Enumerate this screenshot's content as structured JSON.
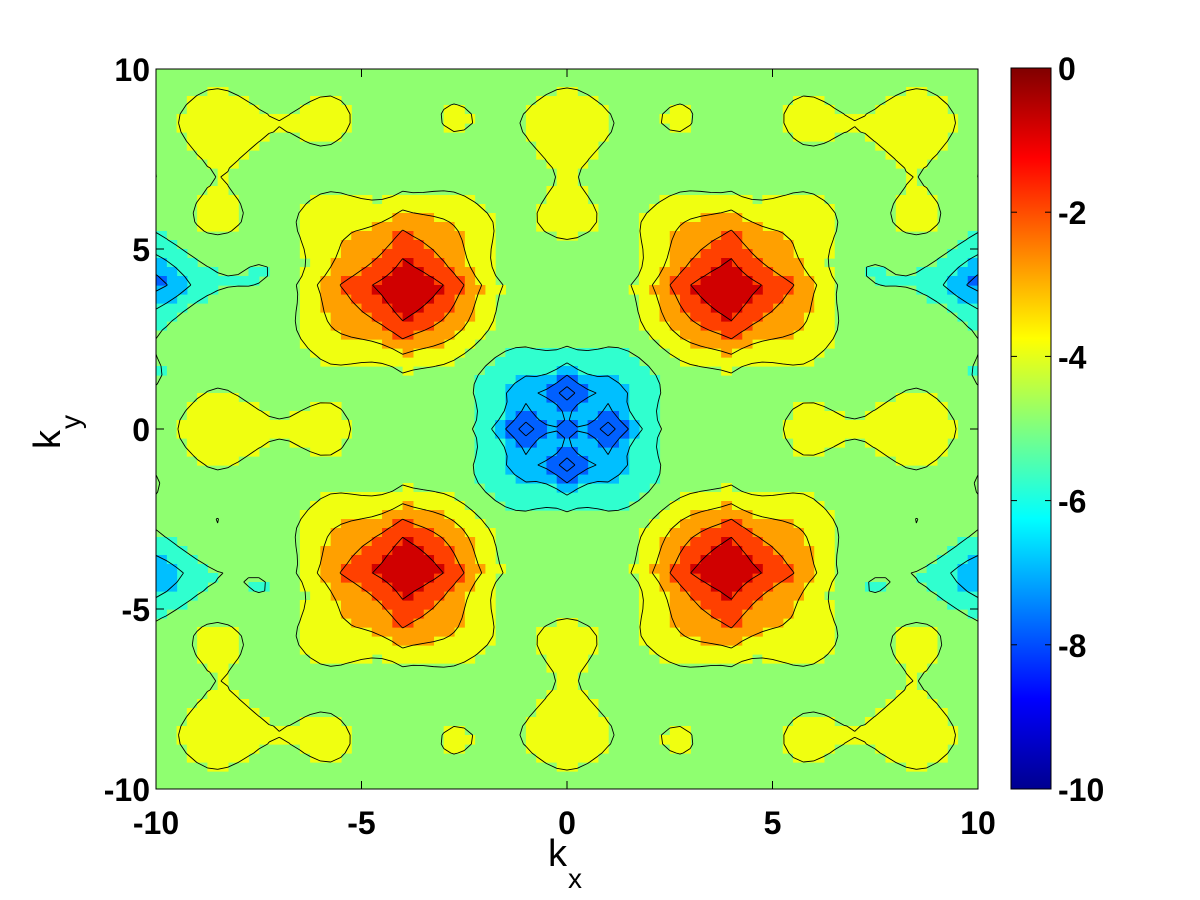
{
  "chart_data": {
    "type": "heatmap",
    "subtype": "filled-contour",
    "title": "",
    "xlabel": {
      "main": "k",
      "sub": "x"
    },
    "ylabel": {
      "main": "k",
      "sub": "y"
    },
    "xlim": [
      -10,
      10
    ],
    "ylim": [
      -10,
      10
    ],
    "x_ticks": [
      -10,
      -5,
      0,
      5,
      10
    ],
    "y_ticks": [
      -10,
      -5,
      0,
      5,
      10
    ],
    "x_tick_labels": [
      "-10",
      "-5",
      "0",
      "5",
      "10"
    ],
    "y_tick_labels": [
      "-10",
      "-5",
      "0",
      "5",
      "10"
    ],
    "colorbar": {
      "range": [
        -10,
        0
      ],
      "ticks": [
        0,
        -2,
        -4,
        -6,
        -8,
        -10
      ],
      "tick_labels": [
        "0",
        "-2",
        "-4",
        "-6",
        "-8",
        "-10"
      ],
      "colormap": "jet"
    },
    "contour_levels": [
      -10,
      -9,
      -8,
      -7,
      -6,
      -5,
      -4,
      -3,
      -2,
      -1,
      0
    ],
    "level_colors": {
      "-10": "#00008f",
      "-9": "#0000ff",
      "-8": "#0060ff",
      "-7": "#00bfff",
      "-6": "#30ffcf",
      "-5": "#8fff70",
      "-4": "#f0ff10",
      "-3": "#ffa000",
      "-2": "#ff4000",
      "-1": "#d00000",
      "0": "#800000"
    },
    "features": [
      {
        "label": "maximum",
        "x": -4,
        "y": 4,
        "value": -0.2
      },
      {
        "label": "maximum",
        "x": 4,
        "y": 4,
        "value": -0.2
      },
      {
        "label": "maximum",
        "x": -4,
        "y": -4,
        "value": -0.2
      },
      {
        "label": "maximum",
        "x": 4,
        "y": -4,
        "value": -0.2
      },
      {
        "label": "minimum",
        "x": 0,
        "y": 1,
        "value": -7.5
      },
      {
        "label": "minimum",
        "x": 0,
        "y": -1,
        "value": -7.5
      },
      {
        "label": "minimum",
        "x": -1,
        "y": 0,
        "value": -7.5
      },
      {
        "label": "minimum",
        "x": 1,
        "y": 0,
        "value": -7.5
      },
      {
        "label": "minimum",
        "x": -10,
        "y": 4,
        "value": -6.8
      },
      {
        "label": "minimum",
        "x": 10,
        "y": 4,
        "value": -6.8
      },
      {
        "label": "minimum",
        "x": -10,
        "y": -4,
        "value": -6.3
      },
      {
        "label": "minimum",
        "x": 10,
        "y": -4,
        "value": -6.3
      }
    ]
  }
}
